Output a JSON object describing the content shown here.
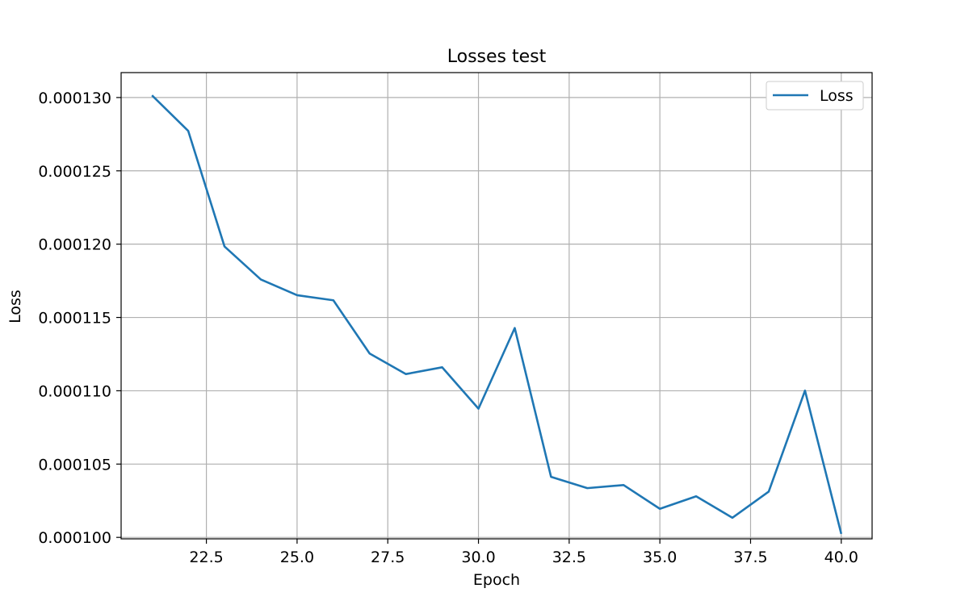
{
  "chart_data": {
    "type": "line",
    "title": "Losses test",
    "xlabel": "Epoch",
    "ylabel": "Loss",
    "xlim": [
      20.15,
      40.85
    ],
    "ylim": [
      9.99e-05,
      0.0001317
    ],
    "xticks": [
      22.5,
      25.0,
      27.5,
      30.0,
      32.5,
      35.0,
      37.5,
      40.0
    ],
    "xtick_labels": [
      "22.5",
      "25.0",
      "27.5",
      "30.0",
      "32.5",
      "35.0",
      "37.5",
      "40.0"
    ],
    "yticks": [
      0.0001,
      0.000105,
      0.00011,
      0.000115,
      0.00012,
      0.000125,
      0.00013
    ],
    "ytick_labels": [
      "0.000100",
      "0.000105",
      "0.000110",
      "0.000115",
      "0.000120",
      "0.000125",
      "0.000130"
    ],
    "grid": true,
    "legend_position": "top-right",
    "series": [
      {
        "name": "Loss",
        "color": "#1f77b4",
        "x": [
          21,
          22,
          23,
          24,
          25,
          26,
          27,
          28,
          29,
          30,
          31,
          32,
          33,
          34,
          35,
          36,
          37,
          38,
          39,
          40
        ],
        "y": [
          0.00013015,
          0.00012772,
          0.00011984,
          0.00011759,
          0.00011652,
          0.00011617,
          0.00011254,
          0.00011114,
          0.0001116,
          0.00010878,
          0.00011428,
          0.00010413,
          0.00010336,
          0.00010357,
          0.00010195,
          0.0001028,
          0.00010134,
          0.00010312,
          0.00011001,
          0.00010024
        ]
      }
    ]
  }
}
